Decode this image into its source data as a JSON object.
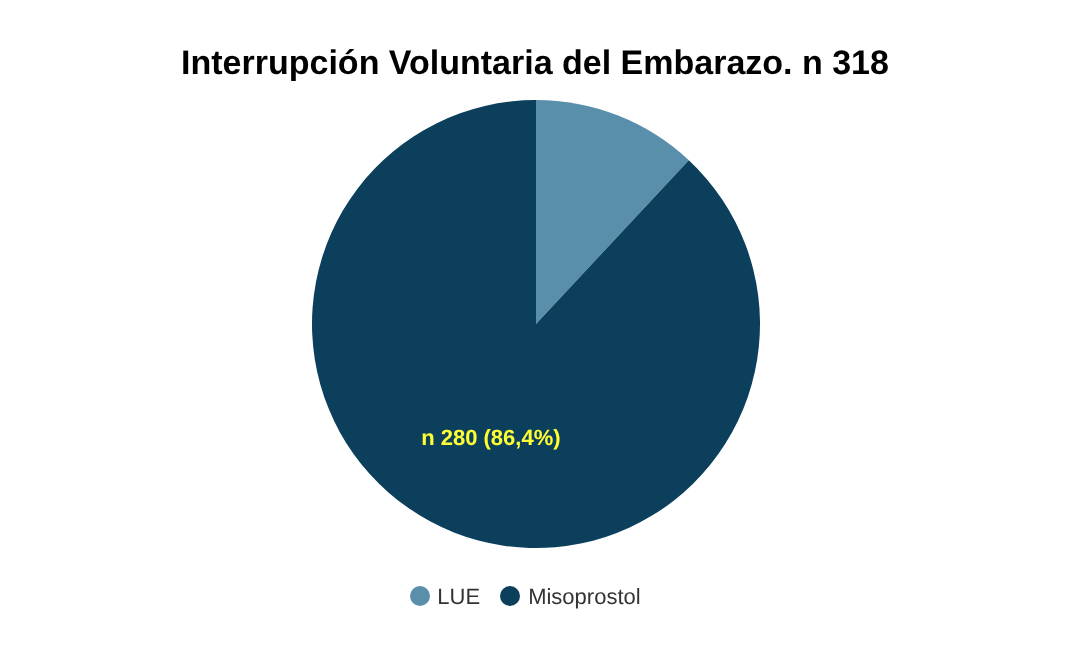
{
  "chart_data": {
    "type": "pie",
    "title": "Interrupción Voluntaria del Embarazo. n 318",
    "categories": [
      "LUE",
      "Misoprostol"
    ],
    "values": [
      38,
      280
    ],
    "colors": [
      "#5a8fab",
      "#0b3f5c"
    ],
    "value_labels": [
      null,
      "n 280 (86,4%)"
    ],
    "legend": "bottom"
  }
}
